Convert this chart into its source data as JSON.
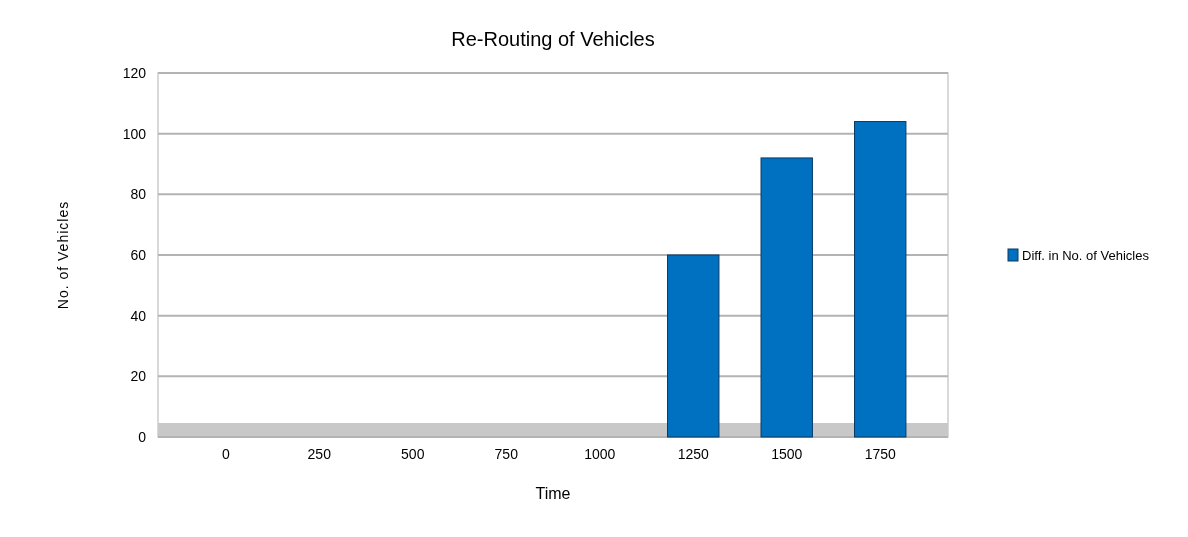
{
  "chart_data": {
    "type": "bar",
    "title": "Re-Routing of Vehicles",
    "xlabel": "Time",
    "ylabel": "No. of Vehicles",
    "categories": [
      "0",
      "250",
      "500",
      "750",
      "1000",
      "1250",
      "1500",
      "1750"
    ],
    "series": [
      {
        "name": "Diff. in No. of Vehicles",
        "color": "#0070c0",
        "values": [
          0,
          0,
          0,
          0,
          0,
          60,
          92,
          104
        ]
      }
    ],
    "ylim": [
      0,
      120
    ],
    "yticks": [
      0,
      20,
      40,
      60,
      80,
      100,
      120
    ],
    "grid": "y",
    "legend": "right"
  }
}
